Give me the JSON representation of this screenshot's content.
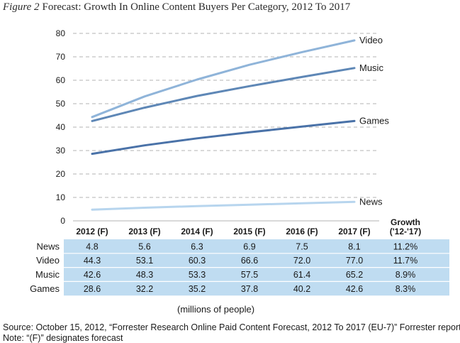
{
  "header": {
    "figure_label": "Figure 2",
    "title": "Forecast: Growth In Online Content Buyers Per Category, 2012 To 2017"
  },
  "chart_data": {
    "type": "line",
    "title": "Forecast: Growth In Online Content Buyers Per Category, 2012 To 2017",
    "x": [
      "2012 (F)",
      "2013 (F)",
      "2014 (F)",
      "2015 (F)",
      "2016 (F)",
      "2017 (F)"
    ],
    "ylim": [
      0,
      80
    ],
    "yticks": [
      "0",
      "10",
      "20",
      "30",
      "40",
      "50",
      "60",
      "70",
      "80"
    ],
    "grid": "dashed horizontal",
    "series": [
      {
        "name": "Video",
        "values": [
          44.3,
          53.1,
          60.3,
          66.6,
          72.0,
          77.0
        ],
        "growth": "11.7%",
        "color": "#8fb4d9"
      },
      {
        "name": "Music",
        "values": [
          42.6,
          48.3,
          53.3,
          57.5,
          61.4,
          65.2
        ],
        "growth": "8.9%",
        "color": "#5e87b6"
      },
      {
        "name": "Games",
        "values": [
          28.6,
          32.2,
          35.2,
          37.8,
          40.2,
          42.6
        ],
        "growth": "8.3%",
        "color": "#4a72a8"
      },
      {
        "name": "News",
        "values": [
          4.8,
          5.6,
          6.3,
          6.9,
          7.5,
          8.1
        ],
        "growth": "11.2%",
        "color": "#b7d5ee"
      }
    ]
  },
  "table": {
    "growth_header": "Growth",
    "growth_subheader": "('12-'17)",
    "row_order": [
      "News",
      "Video",
      "Music",
      "Games"
    ],
    "cell_bg": "#bfdcf1"
  },
  "footer": {
    "units": "(millions of people)",
    "source": "Source: October 15, 2012, “Forrester Research Online Paid Content Forecast, 2012 To 2017 (EU-7)” Forrester report",
    "note": "Note: “(F)” designates forecast"
  }
}
